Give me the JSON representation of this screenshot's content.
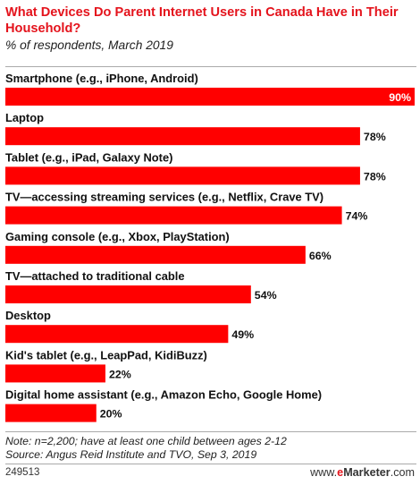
{
  "header": {
    "title": "What Devices Do Parent Internet Users in Canada Have in Their Household?",
    "subtitle": "% of respondents, March 2019"
  },
  "chart_data": {
    "type": "bar",
    "orientation": "horizontal",
    "categories": [
      "Smartphone (e.g., iPhone, Android)",
      "Laptop",
      "Tablet (e.g., iPad, Galaxy Note)",
      "TV—accessing streaming services (e.g., Netflix, Crave TV)",
      "Gaming console (e.g., Xbox, PlayStation)",
      "TV—attached to traditional cable",
      "Desktop",
      "Kid's tablet (e.g., LeapPad, KidiBuzz)",
      "Digital home assistant (e.g., Amazon Echo, Google Home)"
    ],
    "values": [
      90,
      78,
      78,
      74,
      66,
      54,
      49,
      22,
      20
    ],
    "value_labels": [
      "90%",
      "78%",
      "78%",
      "74%",
      "66%",
      "54%",
      "49%",
      "22%",
      "20%"
    ],
    "xlim": [
      0,
      90
    ],
    "bar_color": "#ff0000",
    "grid": false,
    "legend": "none"
  },
  "footer": {
    "note": "Note: n=2,200; have at least one child between ages 2-12",
    "source": "Source: Angus Reid Institute and TVO, Sep 3, 2019"
  },
  "bottom": {
    "chart_id": "249513",
    "brand_prefix": "www.",
    "brand_e": "e",
    "brand_name": "Marketer",
    "brand_suffix": ".com"
  }
}
